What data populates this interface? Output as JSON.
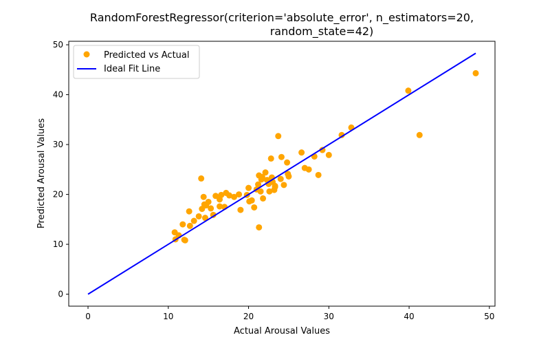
{
  "chart_data": {
    "type": "scatter",
    "title": [
      "RandomForestRegressor(criterion='absolute_error', n_estimators=20,",
      "random_state=42)"
    ],
    "xlabel": "Actual Arousal Values",
    "ylabel": "Predicted Arousal Values",
    "xlim": [
      -2.4,
      50.7
    ],
    "ylim": [
      -2.4,
      50.7
    ],
    "xticks": [
      0,
      10,
      20,
      30,
      40,
      50
    ],
    "yticks": [
      0,
      10,
      20,
      30,
      40,
      50
    ],
    "grid": false,
    "legend_position": "top-left",
    "colors": {
      "points": "#FFA500",
      "line": "#0000FF"
    },
    "series": [
      {
        "name": "Predicted vs Actual",
        "kind": "scatter",
        "points": [
          [
            10.8,
            12.4
          ],
          [
            10.9,
            11.0
          ],
          [
            11.3,
            11.8
          ],
          [
            11.8,
            14.0
          ],
          [
            12.0,
            10.9
          ],
          [
            12.1,
            10.8
          ],
          [
            12.6,
            16.6
          ],
          [
            12.7,
            13.7
          ],
          [
            13.2,
            14.7
          ],
          [
            13.8,
            15.6
          ],
          [
            14.1,
            23.2
          ],
          [
            14.2,
            17.1
          ],
          [
            14.4,
            19.5
          ],
          [
            14.5,
            18.0
          ],
          [
            14.6,
            15.3
          ],
          [
            14.7,
            17.8
          ],
          [
            15.0,
            18.5
          ],
          [
            15.3,
            17.2
          ],
          [
            15.6,
            15.9
          ],
          [
            15.9,
            19.7
          ],
          [
            16.4,
            19.0
          ],
          [
            16.4,
            17.6
          ],
          [
            16.6,
            19.9
          ],
          [
            17.0,
            17.5
          ],
          [
            17.2,
            20.3
          ],
          [
            17.6,
            19.8
          ],
          [
            18.2,
            19.5
          ],
          [
            18.8,
            20.0
          ],
          [
            19.0,
            16.9
          ],
          [
            19.8,
            19.9
          ],
          [
            20.0,
            21.3
          ],
          [
            20.1,
            18.6
          ],
          [
            20.4,
            18.8
          ],
          [
            20.7,
            17.4
          ],
          [
            21.0,
            21.0
          ],
          [
            21.2,
            22.0
          ],
          [
            21.3,
            23.8
          ],
          [
            21.3,
            13.4
          ],
          [
            21.5,
            20.6
          ],
          [
            21.6,
            23.0
          ],
          [
            21.7,
            23.5
          ],
          [
            21.8,
            19.2
          ],
          [
            22.1,
            24.4
          ],
          [
            22.3,
            22.9
          ],
          [
            22.5,
            22.1
          ],
          [
            22.6,
            20.6
          ],
          [
            22.8,
            27.2
          ],
          [
            22.9,
            23.4
          ],
          [
            23.0,
            22.5
          ],
          [
            23.2,
            20.9
          ],
          [
            23.3,
            21.7
          ],
          [
            23.3,
            21.5
          ],
          [
            23.7,
            31.7
          ],
          [
            24.0,
            23.1
          ],
          [
            24.1,
            27.5
          ],
          [
            24.4,
            21.9
          ],
          [
            24.8,
            26.4
          ],
          [
            24.9,
            24.1
          ],
          [
            25.0,
            23.6
          ],
          [
            26.6,
            28.4
          ],
          [
            27.0,
            25.3
          ],
          [
            27.5,
            25.0
          ],
          [
            28.2,
            27.6
          ],
          [
            28.7,
            23.9
          ],
          [
            29.2,
            28.9
          ],
          [
            30.0,
            27.9
          ],
          [
            31.6,
            31.9
          ],
          [
            32.8,
            33.4
          ],
          [
            39.9,
            40.8
          ],
          [
            41.3,
            31.9
          ],
          [
            48.3,
            44.3
          ]
        ]
      },
      {
        "name": "Ideal Fit Line",
        "kind": "line",
        "points": [
          [
            0,
            0
          ],
          [
            48.3,
            48.3
          ]
        ]
      }
    ]
  }
}
